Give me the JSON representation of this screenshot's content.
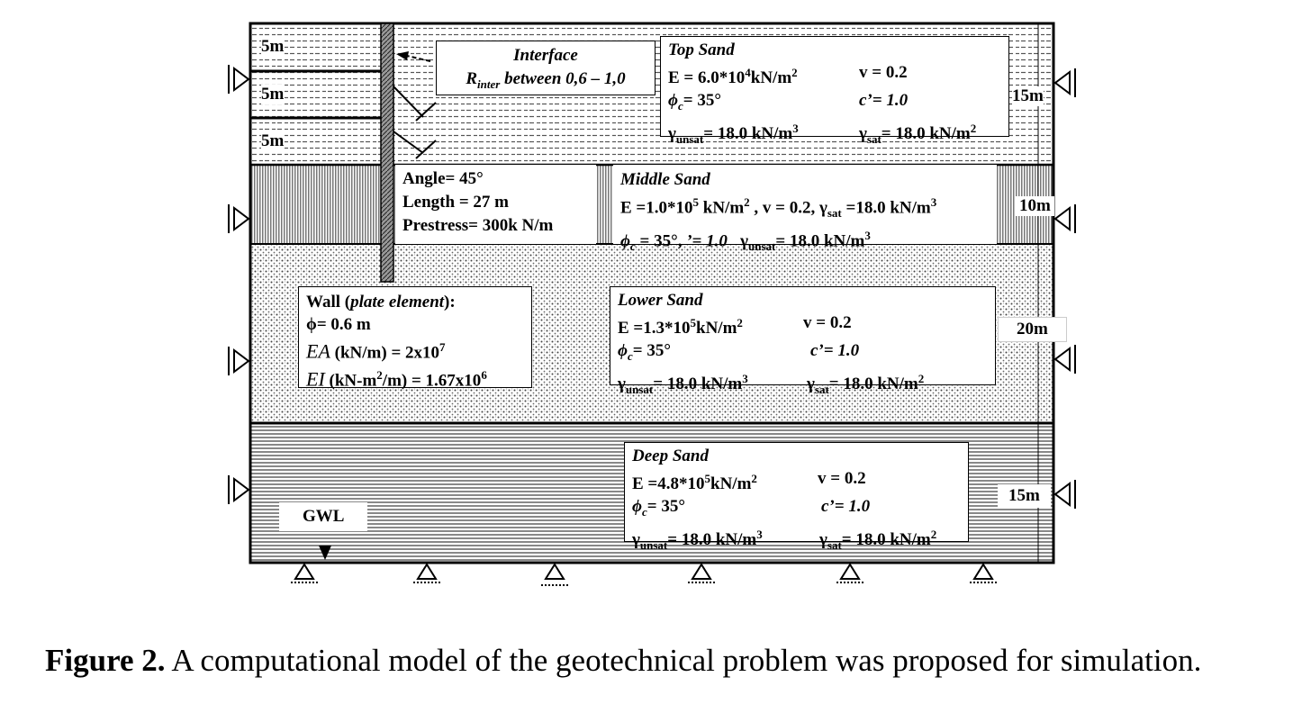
{
  "layers": {
    "top": {
      "depths": [
        "5m",
        "5m",
        "5m"
      ],
      "total": "15m"
    },
    "middle": {
      "total": "10m"
    },
    "lower": {
      "total": "20m"
    },
    "deep": {
      "total": "15m"
    }
  },
  "interface": {
    "title": "Interface",
    "r_label": "R",
    "r_sub": "inter",
    "r_text": " between 0,6 – 1,0"
  },
  "top_sand": {
    "title": "Top Sand",
    "E": "E = 6.0*10",
    "E_exp": "4",
    "E_unit": " kN/m",
    "E_unit_exp": "2",
    "v": "v = 0.2",
    "phi": "ϕ",
    "phi_sub": "c",
    "phi_val": " = 35°",
    "c": "c’= 1.0",
    "g_unsat": "γ",
    "g_unsat_sub": "unsat",
    "g_unsat_val": "= 18.0 kN/m",
    "g_unsat_exp": "3",
    "g_sat": "γ",
    "g_sat_sub": "sat",
    "g_sat_val": "= 18.0 kN/m",
    "g_sat_exp": "2"
  },
  "anchor": {
    "angle": "Angle= 45°",
    "length": "Length = 27 m",
    "prestress": "Prestress= 300k N/m"
  },
  "middle_sand": {
    "title": "Middle Sand",
    "line1_a": "E =1.0*10",
    "line1_exp": "5",
    "line1_b": " kN/m",
    "line1_exp2": "2",
    "line1_c": " , v = 0.2, γ",
    "line1_sub": "sat",
    "line1_d": " =18.0 kN/m",
    "line1_exp3": "3",
    "line2_a": "ϕ",
    "line2_sub": "c",
    "line2_b": " = 35°, ",
    "line2_c": "’= 1.0",
    "line2_d": "   γ",
    "line2_sub2": "unsat",
    "line2_e": "= 18.0 kN/m",
    "line2_exp": "3"
  },
  "wall": {
    "title_a": "Wall (",
    "title_it": "plate element",
    "title_b": "):",
    "phi": "ϕ= 0.6 m",
    "ea_a": "EA",
    "ea_b": " (kN/m) = 2x10",
    "ea_exp": "7",
    "ei_a": "EI",
    "ei_b": " (kN-m",
    "ei_exp": "2",
    "ei_c": "/m) = 1.67x10",
    "ei_exp2": "6"
  },
  "lower_sand": {
    "title": "Lower Sand",
    "E": "E =1.3*10",
    "E_exp": "5",
    "E_unit": " kN/m",
    "E_unit_exp": "2",
    "v": "v = 0.2",
    "phi": "ϕ",
    "phi_sub": "c",
    "phi_val": " = 35°",
    "c": "c’= 1.0",
    "g_unsat": "γ",
    "g_unsat_sub": "unsat",
    "g_unsat_val": "= 18.0 kN/m",
    "g_unsat_exp": "3",
    "g_sat": "γ",
    "g_sat_sub": "sat",
    "g_sat_val": "= 18.0 kN/m",
    "g_sat_exp": "2"
  },
  "deep_sand": {
    "title": "Deep Sand",
    "E": "E =4.8*10",
    "E_exp": "5",
    "E_unit": " kN/m",
    "E_unit_exp": "2",
    "v": "v = 0.2",
    "phi": "ϕ",
    "phi_sub": "c",
    "phi_val": " = 35°",
    "c": "c’= 1.0",
    "g_unsat": "γ",
    "g_unsat_sub": "unsat",
    "g_unsat_val": "= 18.0 kN/m",
    "g_unsat_exp": "3",
    "g_sat": "γ",
    "g_sat_sub": "sat",
    "g_sat_val": "= 18.0 kN/m",
    "g_sat_exp": "2"
  },
  "gwl": "GWL",
  "caption": {
    "label": "Figure 2.",
    "text": " A computational model of the geotechnical problem was proposed for simulation."
  }
}
